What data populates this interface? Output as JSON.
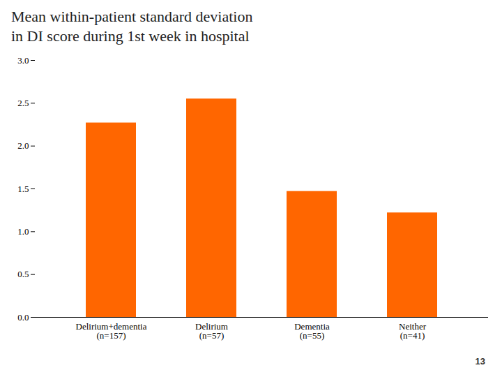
{
  "chart_data": {
    "type": "bar",
    "title": "Mean within-patient standard deviation\nin DI score during 1st week in hospital",
    "categories": [
      "Delirium+dementia\n(n=157)",
      "Delirium\n(n=57)",
      "Dementia\n(n=55)",
      "Neither\n(n=41)"
    ],
    "values": [
      2.27,
      2.55,
      1.47,
      1.22
    ],
    "color": "#FF6600",
    "ylim": [
      0,
      3
    ],
    "yticks": [
      0,
      0.5,
      1,
      1.5,
      2,
      2.5,
      3
    ],
    "grid": false,
    "caption": "13"
  }
}
